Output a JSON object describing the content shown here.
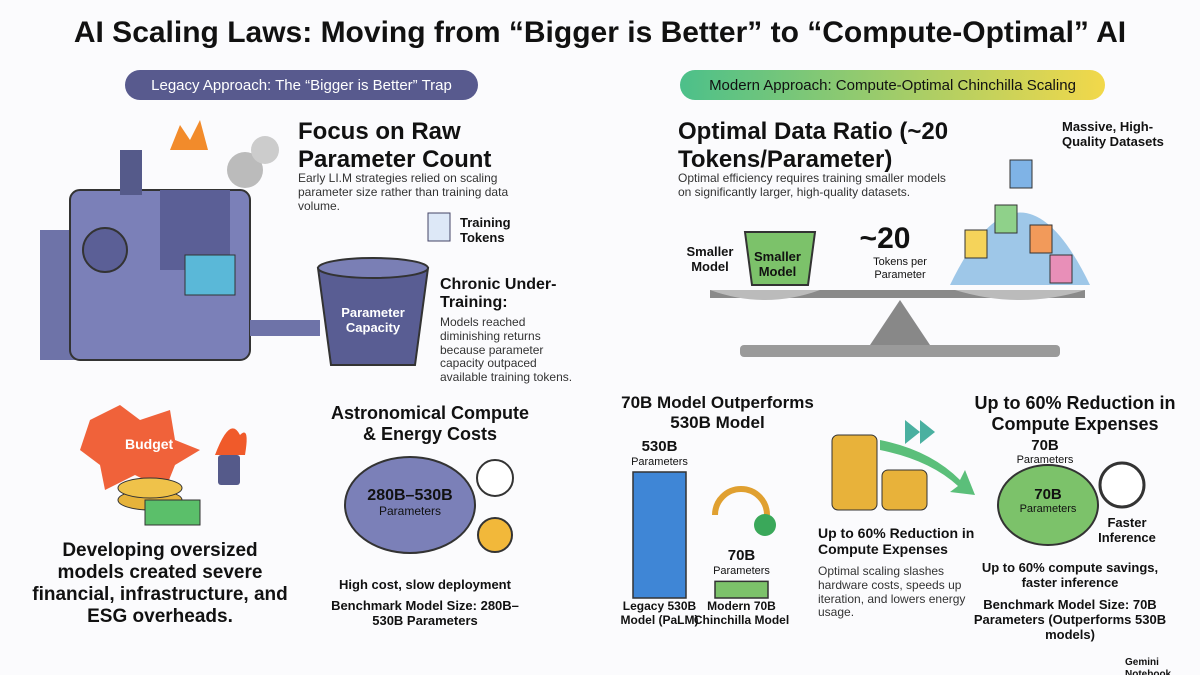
{
  "title": "AI Scaling Laws: Moving from “Bigger is Better” to “Compute-Optimal” AI",
  "legacy": {
    "banner": "Legacy Approach: The “Bigger is Better” Trap",
    "heading": "Focus on Raw Parameter Count",
    "body": "Early LI.M strategies relied on scaling parameter size rather than training data volume.",
    "training_tokens": "Training Tokens",
    "capacity": "Parameter Capacity",
    "under_training_title": "Chronic Under-Training:",
    "under_training_body": "Models reached diminishing returns because parameter capacity outpaced available training tokens.",
    "budget": "Budget",
    "overheads": "Developing oversized models created severe financial, infrastructure, and ESG overheads.",
    "compute_heading": "Astronomical Compute & Energy Costs",
    "compute_range": "280B–530B",
    "compute_unit": "Parameters",
    "compute_note": "High cost, slow deployment",
    "benchmark": "Benchmark Model Size: 280B–530B Parameters"
  },
  "modern": {
    "banner": "Modern Approach: Compute-Optimal Chinchilla Scaling",
    "heading": "Optimal Data Ratio (~20 Tokens/Parameter)",
    "body": "Optimal efficiency requires training smaller models on significantly larger, high-quality datasets.",
    "datasets": "Massive, High-Quality Datasets",
    "smaller_model_label": "Smaller Model",
    "smaller_model_bucket": "Smaller Model",
    "ratio": "~20",
    "ratio_unit": "Tokens per Parameter",
    "comparison_heading": "70B Model Outperforms 530B Model",
    "bars": [
      {
        "value": 530,
        "label": "530B",
        "unit": "Parameters",
        "name": "Legacy 530B Model (PaLM)"
      },
      {
        "value": 70,
        "label": "70B",
        "unit": "Parameters",
        "name": "Modern 70B Chinchilla Model"
      }
    ],
    "reduction_heading": "Up to 60% Reduction in Compute Expenses",
    "reduction_body": "Optimal scaling slashes hardware costs, speeds up iteration, and lowers energy usage.",
    "right_heading": "Up to 60% Reduction in Compute Expenses",
    "right_size": "70B",
    "right_unit": "Parameters",
    "brain_size": "70B",
    "brain_unit": "Parameters",
    "faster": "Faster Inference",
    "savings": "Up to 60% compute savings, faster inference",
    "right_benchmark": "Benchmark Model Size: 70B Parameters (Outperforms 530B models)"
  },
  "footer": "Gemini Notebook"
}
